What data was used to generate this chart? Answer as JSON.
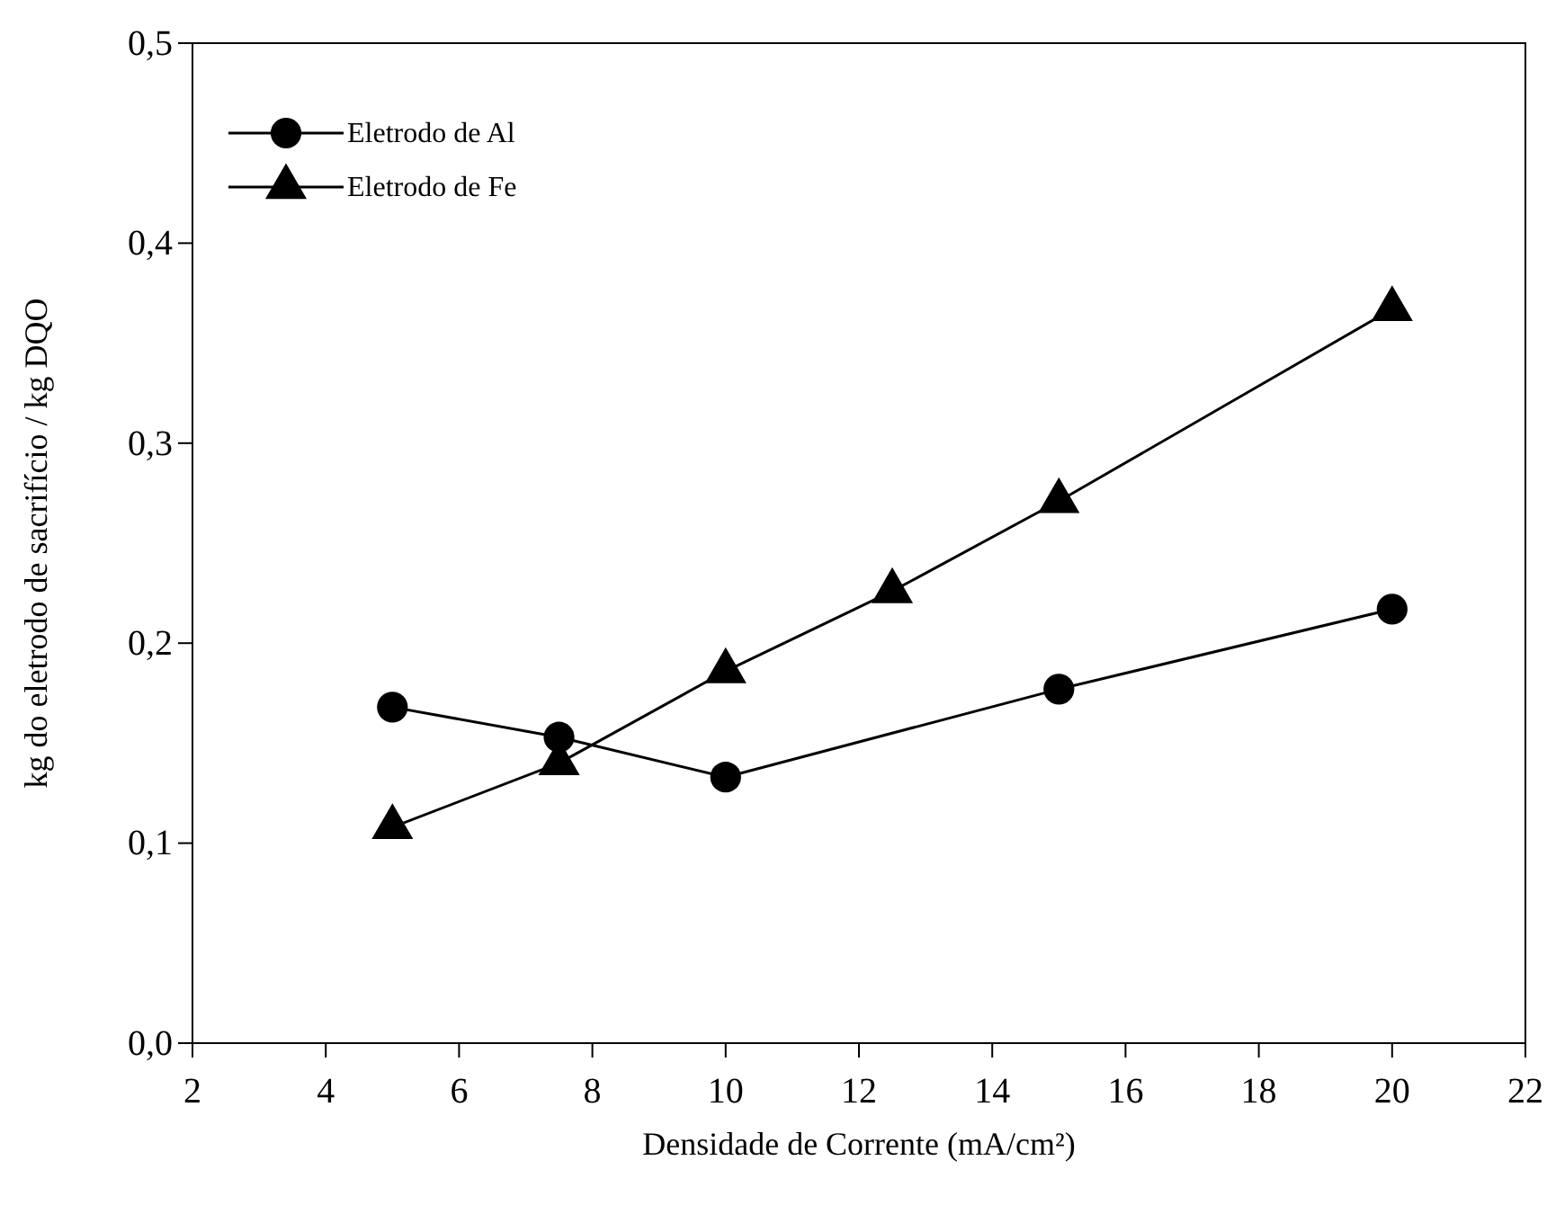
{
  "chart_data": {
    "type": "line",
    "xlabel": "Densidade de Corrente (mA/cm²)",
    "ylabel": "kg do eletrodo de sacrifício / kg DQO",
    "xlim": [
      2,
      22
    ],
    "xticks": [
      2,
      4,
      6,
      8,
      10,
      12,
      14,
      16,
      18,
      20,
      22
    ],
    "ylim": [
      0,
      0.5
    ],
    "yticks": [
      {
        "value": 0,
        "label": "0,0"
      },
      {
        "value": 0.1,
        "label": "0,1"
      },
      {
        "value": 0.2,
        "label": "0,2"
      },
      {
        "value": 0.3,
        "label": "0,3"
      },
      {
        "value": 0.4,
        "label": "0,4"
      },
      {
        "value": 0.5,
        "label": "0,5"
      }
    ],
    "legend": "top left",
    "grid": false,
    "series": [
      {
        "name": "Eletrodo de Al",
        "color": "#000000",
        "marker": "circle",
        "x": [
          5,
          7.5,
          10,
          15,
          20
        ],
        "values": [
          0.168,
          0.153,
          0.133,
          0.177,
          0.217
        ]
      },
      {
        "name": "Eletrodo de Fe",
        "color": "#000000",
        "marker": "triangle",
        "x": [
          5,
          7.5,
          10,
          12.5,
          15,
          20
        ],
        "values": [
          0.108,
          0.14,
          0.186,
          0.226,
          0.271,
          0.367
        ]
      }
    ]
  }
}
